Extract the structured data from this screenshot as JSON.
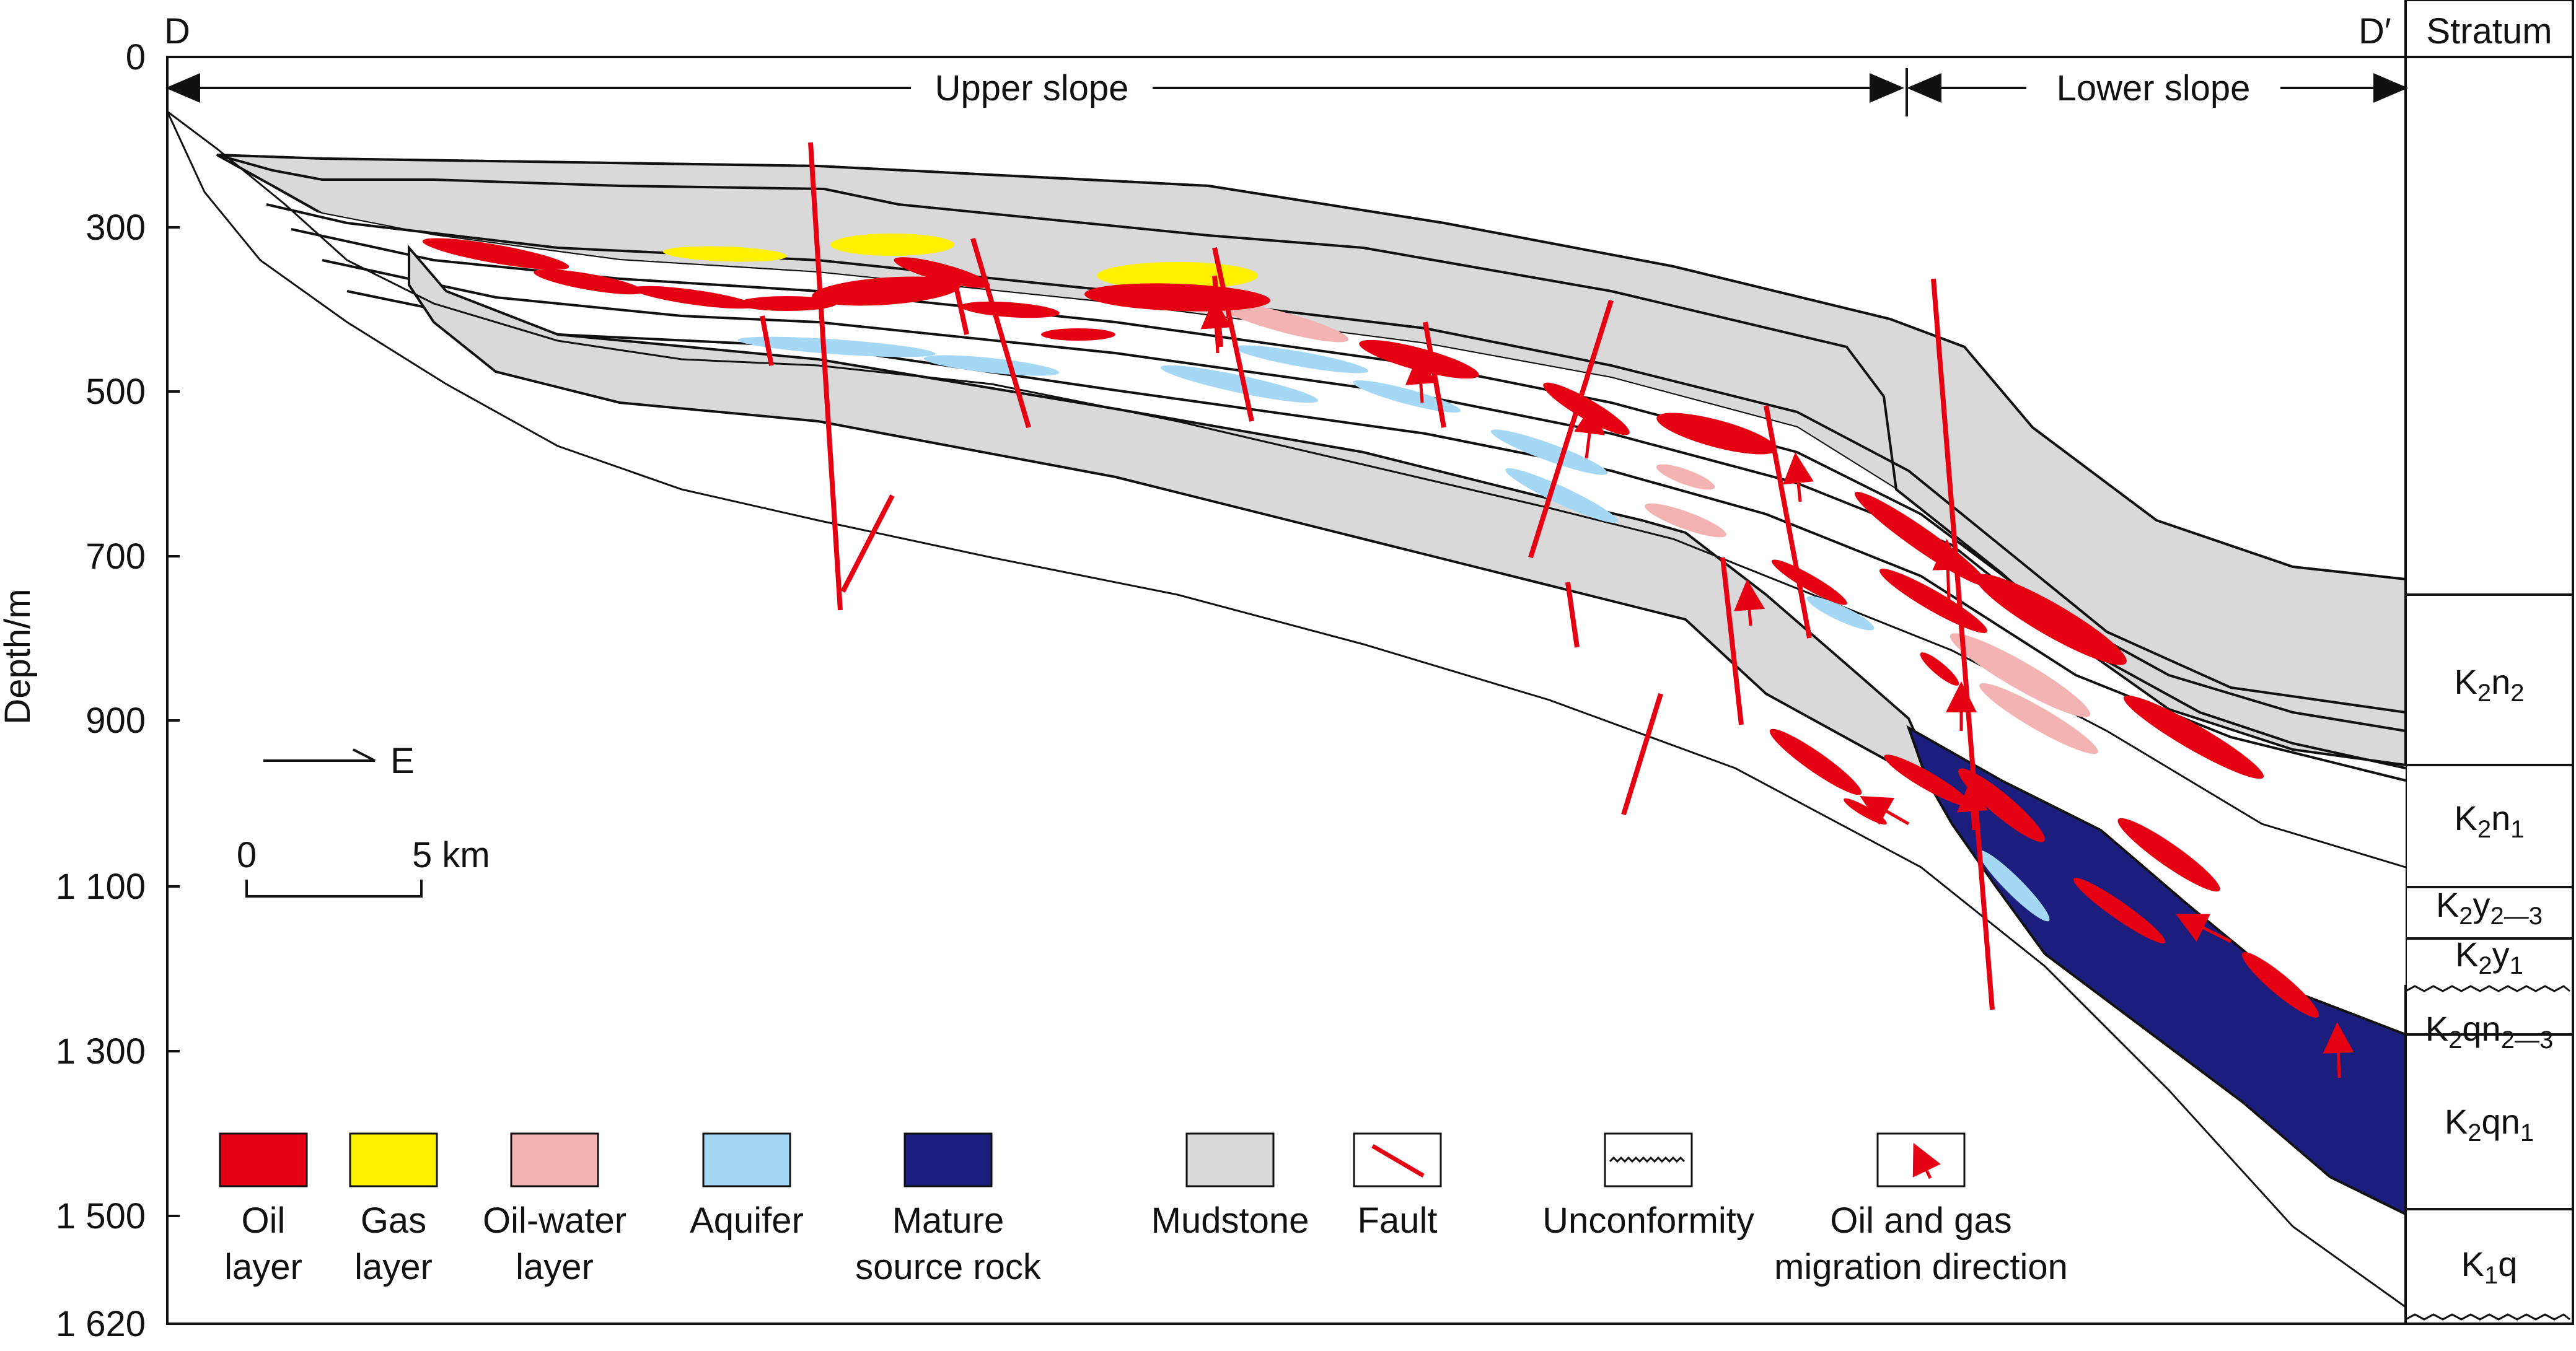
{
  "section": {
    "start_label": "D",
    "end_label": "D′",
    "stratum_header": "Stratum",
    "upper_slope_label": "Upper slope",
    "lower_slope_label": "Lower slope"
  },
  "depth_axis": {
    "label": "Depth/m",
    "ticks": [
      "0",
      "300",
      "500",
      "700",
      "900",
      "1 100",
      "1 300",
      "1 500",
      "1 620"
    ]
  },
  "north_arrow": {
    "label": "E"
  },
  "scale_bar": {
    "start": "0",
    "end": "5 km"
  },
  "strata": [
    {
      "base": "K",
      "s1": "2",
      "mid": "n",
      "s2": "2"
    },
    {
      "base": "K",
      "s1": "2",
      "mid": "n",
      "s2": "1"
    },
    {
      "base": "K",
      "s1": "2",
      "mid": "y",
      "s2": "2—3"
    },
    {
      "base": "K",
      "s1": "2",
      "mid": "y",
      "s2": "1"
    },
    {
      "base": "K",
      "s1": "2",
      "mid": "qn",
      "s2": "2—3"
    },
    {
      "base": "K",
      "s1": "2",
      "mid": "qn",
      "s2": "1"
    },
    {
      "base": "K",
      "s1": "1",
      "mid": "q",
      "s2": ""
    }
  ],
  "legend": [
    {
      "key": "oil",
      "line1": "Oil",
      "line2": "layer",
      "color": "#e50012"
    },
    {
      "key": "gas",
      "line1": "Gas",
      "line2": "layer",
      "color": "#fff100"
    },
    {
      "key": "oilwater",
      "line1": "Oil-water",
      "line2": "layer",
      "color": "#f3b3b3"
    },
    {
      "key": "aquifer",
      "line1": "Aquifer",
      "line2": "",
      "color": "#a5d8f5"
    },
    {
      "key": "source",
      "line1": "Mature",
      "line2": "source rock",
      "color": "#1b1e7d"
    },
    {
      "key": "mudstone",
      "line1": "Mudstone",
      "line2": "",
      "color": "#d9d9d9"
    },
    {
      "key": "fault",
      "line1": "Fault",
      "line2": "",
      "color": "#e50012"
    },
    {
      "key": "unconformity",
      "line1": "Unconformity",
      "line2": "",
      "color": "#111111"
    },
    {
      "key": "migration",
      "line1": "Oil and gas",
      "line2": "migration direction",
      "color": "#e50012"
    }
  ]
}
